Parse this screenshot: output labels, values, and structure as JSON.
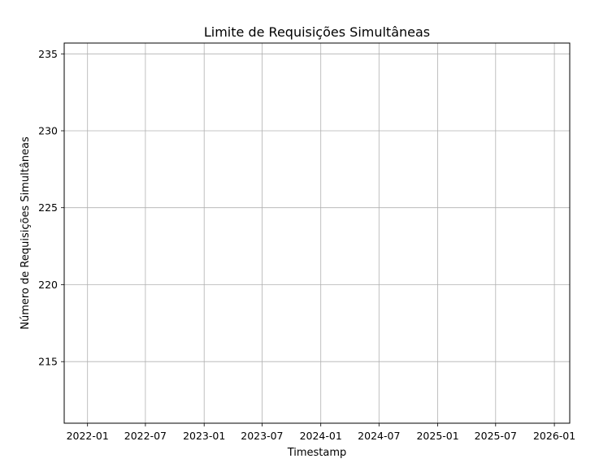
{
  "chart_data": {
    "type": "line",
    "title": "Limite de Requisições Simultâneas",
    "xlabel": "Timestamp",
    "ylabel": "Número de Requisições Simultâneas",
    "x_axis_kind": "date",
    "xlim": [
      "2021-10-20",
      "2026-02-18"
    ],
    "ylim": [
      211,
      235.7
    ],
    "x_ticks": [
      "2022-01",
      "2022-07",
      "2023-01",
      "2023-07",
      "2024-01",
      "2024-07",
      "2025-01",
      "2025-07",
      "2026-01"
    ],
    "y_ticks": [
      215,
      220,
      225,
      230,
      235
    ],
    "grid": true,
    "series": []
  }
}
